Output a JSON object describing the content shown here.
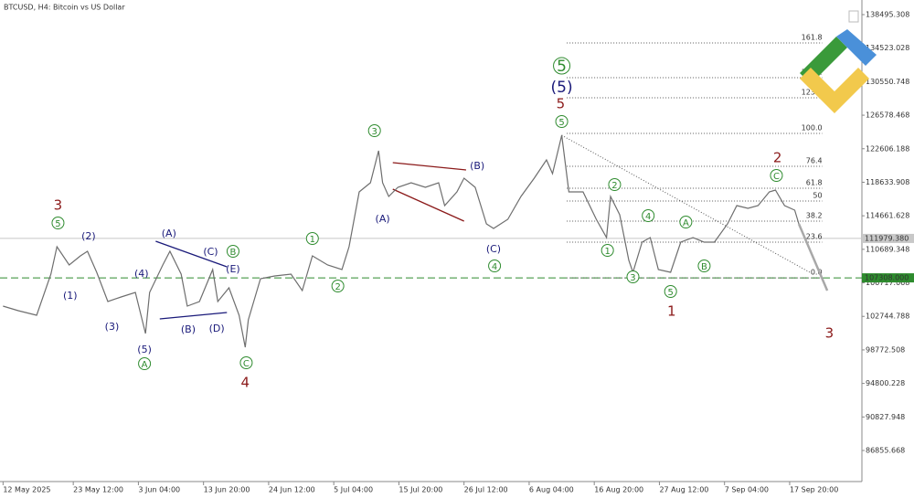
{
  "chart_data": {
    "type": "line",
    "title": "BTCUSD, H4:  Bitcoin vs US Dollar",
    "x": [
      0,
      15,
      33,
      47,
      53,
      65,
      76,
      83,
      92,
      103,
      116,
      130,
      140,
      144,
      157,
      164,
      175,
      181,
      193,
      206,
      211,
      222,
      232,
      238,
      241,
      253,
      267,
      283,
      294,
      304,
      319,
      333,
      340,
      350,
      361,
      369,
      373,
      379,
      388,
      401,
      415,
      428,
      434,
      446,
      453,
      464,
      475,
      482,
      496,
      509,
      522,
      534,
      540,
      549,
      556,
      570,
      583,
      593,
      597,
      606,
      615,
      619,
      628,
      636,
      644,
      656,
      666,
      678,
      689,
      699,
      712,
      721,
      732,
      742,
      753,
      759,
      768,
      778,
      782
    ],
    "values": [
      103960,
      103420,
      102880,
      107750,
      111000,
      108830,
      109910,
      110455,
      107966,
      104501,
      105042,
      105584,
      100712,
      105584,
      108832,
      110455,
      107749,
      103960,
      104501,
      108290,
      104501,
      106125,
      102877,
      99088,
      102336,
      107208,
      107532,
      107749,
      105800,
      109914,
      108832,
      108290,
      110997,
      117492,
      118575,
      122364,
      118575,
      116951,
      118034,
      118575,
      118034,
      118575,
      115868,
      117492,
      119116,
      118034,
      113703,
      113162,
      114245,
      116951,
      119116,
      121281,
      119658,
      124205,
      117492,
      117492,
      114245,
      112079,
      116951,
      114786,
      109373,
      107966,
      111538,
      112079,
      108290,
      107966,
      111538,
      112079,
      111538,
      111538,
      113703,
      115868,
      115544,
      115868,
      117492,
      117709,
      115868,
      115327,
      113703
    ],
    "color": "#6e6e6e",
    "xlim": [
      -3,
      844
    ],
    "ylim": [
      83175,
      140227
    ],
    "xticks": [
      {
        "value": 0,
        "label": "12 May 2025"
      },
      {
        "value": 69,
        "label": "23 May 12:00"
      },
      {
        "value": 133,
        "label": "3 Jun 04:00"
      },
      {
        "value": 197,
        "label": "13 Jun 20:00"
      },
      {
        "value": 261,
        "label": "24 Jun 12:00"
      },
      {
        "value": 325,
        "label": "5 Jul 04:00"
      },
      {
        "value": 389,
        "label": "15 Jul 20:00"
      },
      {
        "value": 453,
        "label": "26 Jul 12:00"
      },
      {
        "value": 517,
        "label": "6 Aug 04:00"
      },
      {
        "value": 581,
        "label": "16 Aug 20:00"
      },
      {
        "value": 645,
        "label": "27 Aug 12:00"
      },
      {
        "value": 709,
        "label": "7 Sep 04:00"
      },
      {
        "value": 773,
        "label": "17 Sep 20:00"
      }
    ],
    "yticks": [
      138495.308,
      134523.028,
      130550.748,
      126578.468,
      122606.188,
      118633.908,
      114661.628,
      110689.348,
      106717.068,
      102744.788,
      98772.508,
      94800.228,
      90827.948,
      86855.668
    ],
    "current_price": {
      "value": 111979.38,
      "label": "111979.380"
    },
    "level": {
      "value": 107308,
      "label": "107308.000",
      "color": "#2e8b2e"
    },
    "projection": {
      "x": [
        782,
        810
      ],
      "values": [
        113703,
        105800
      ],
      "color": "#a8a8a8"
    },
    "fibonacci": {
      "x": [
        554,
        805
      ],
      "levels": [
        {
          "label": "161.8",
          "price": 135139
        },
        {
          "label": "138.2",
          "price": 131025
        },
        {
          "label": "123.6",
          "price": 128643
        },
        {
          "label": "100.0",
          "price": 124421
        },
        {
          "label": "76.4",
          "price": 120524
        },
        {
          "label": "61.8",
          "price": 117925
        },
        {
          "label": "50",
          "price": 116410
        },
        {
          "label": "38.2",
          "price": 114028
        },
        {
          "label": "23.6",
          "price": 111538
        },
        {
          "label": "0.0",
          "price": 107308
        }
      ]
    },
    "trendline": {
      "x": [
        549,
        796
      ],
      "values": [
        124205,
        107749
      ]
    },
    "lines": [
      {
        "x": [
          383,
          455
        ],
        "values": [
          120957,
          120091
        ],
        "color": "#8b1a1a"
      },
      {
        "x": [
          383,
          453
        ],
        "values": [
          117817,
          114028
        ],
        "color": "#8b1a1a"
      },
      {
        "x": [
          150,
          220
        ],
        "values": [
          111646,
          108615
        ],
        "color": "#1a1a7a"
      },
      {
        "x": [
          154,
          220
        ],
        "values": [
          102444,
          103202
        ],
        "color": "#1a1a7a"
      }
    ],
    "annotations": [
      {
        "text": "3",
        "x": 54,
        "price": 115977,
        "color": "#8b1a1a",
        "circled": false
      },
      {
        "text": "5",
        "x": 54,
        "price": 113812,
        "color": "#2e8b2e",
        "circled": true
      },
      {
        "text": "(2)",
        "x": 84,
        "price": 112296,
        "color": "#1a1a7a",
        "circled": false
      },
      {
        "text": "(1)",
        "x": 66,
        "price": 105259,
        "color": "#1a1a7a",
        "circled": false
      },
      {
        "text": "(3)",
        "x": 107,
        "price": 101578,
        "color": "#1a1a7a",
        "circled": false
      },
      {
        "text": "(4)",
        "x": 136,
        "price": 107857,
        "color": "#1a1a7a",
        "circled": false
      },
      {
        "text": "(5)",
        "x": 139,
        "price": 98872,
        "color": "#1a1a7a",
        "circled": false
      },
      {
        "text": "A",
        "x": 139,
        "price": 97140,
        "color": "#2e8b2e",
        "circled": true
      },
      {
        "text": "(A)",
        "x": 163,
        "price": 112621,
        "color": "#1a1a7a",
        "circled": false
      },
      {
        "text": "(B)",
        "x": 182,
        "price": 101253,
        "color": "#1a1a7a",
        "circled": false
      },
      {
        "text": "(C)",
        "x": 204,
        "price": 110455,
        "color": "#1a1a7a",
        "circled": false
      },
      {
        "text": "B",
        "x": 226,
        "price": 110455,
        "color": "#2e8b2e",
        "circled": true
      },
      {
        "text": "(E)",
        "x": 226,
        "price": 108399,
        "color": "#1a1a7a",
        "circled": false
      },
      {
        "text": "(D)",
        "x": 210,
        "price": 101362,
        "color": "#1a1a7a",
        "circled": false
      },
      {
        "text": "C",
        "x": 239,
        "price": 97248,
        "color": "#2e8b2e",
        "circled": true
      },
      {
        "text": "4",
        "x": 238,
        "price": 94974,
        "color": "#8b1a1a",
        "circled": false
      },
      {
        "text": "1",
        "x": 304,
        "price": 111971,
        "color": "#2e8b2e",
        "circled": true
      },
      {
        "text": "2",
        "x": 329,
        "price": 106342,
        "color": "#2e8b2e",
        "circled": true
      },
      {
        "text": "3",
        "x": 365,
        "price": 124746,
        "color": "#2e8b2e",
        "circled": true
      },
      {
        "text": "(A)",
        "x": 373,
        "price": 114353,
        "color": "#1a1a7a",
        "circled": false
      },
      {
        "text": "(B)",
        "x": 466,
        "price": 120632,
        "color": "#1a1a7a",
        "circled": false
      },
      {
        "text": "(C)",
        "x": 482,
        "price": 110780,
        "color": "#1a1a7a",
        "circled": false
      },
      {
        "text": "4",
        "x": 483,
        "price": 108723,
        "color": "#2e8b2e",
        "circled": true
      },
      {
        "text": "5",
        "x": 549,
        "price": 132432,
        "color": "#2e8b2e",
        "circled": true,
        "big": true
      },
      {
        "text": "(5)",
        "x": 549,
        "price": 129942,
        "color": "#1a1a7a",
        "circled": false,
        "big": true
      },
      {
        "text": "5",
        "x": 548,
        "price": 127994,
        "color": "#8b1a1a",
        "circled": false
      },
      {
        "text": "5",
        "x": 549,
        "price": 125828,
        "color": "#2e8b2e",
        "circled": true
      },
      {
        "text": "1",
        "x": 594,
        "price": 110564,
        "color": "#2e8b2e",
        "circled": true
      },
      {
        "text": "2",
        "x": 601,
        "price": 118358,
        "color": "#2e8b2e",
        "circled": true
      },
      {
        "text": "3",
        "x": 619,
        "price": 107424,
        "color": "#2e8b2e",
        "circled": true
      },
      {
        "text": "4",
        "x": 634,
        "price": 114678,
        "color": "#2e8b2e",
        "circled": true
      },
      {
        "text": "5",
        "x": 656,
        "price": 105692,
        "color": "#2e8b2e",
        "circled": true
      },
      {
        "text": "1",
        "x": 657,
        "price": 103419,
        "color": "#8b1a1a",
        "circled": false
      },
      {
        "text": "A",
        "x": 671,
        "price": 113920,
        "color": "#2e8b2e",
        "circled": true
      },
      {
        "text": "B",
        "x": 689,
        "price": 108723,
        "color": "#2e8b2e",
        "circled": true
      },
      {
        "text": "C",
        "x": 760,
        "price": 119441,
        "color": "#2e8b2e",
        "circled": true
      },
      {
        "text": "2",
        "x": 761,
        "price": 121606,
        "color": "#8b1a1a",
        "circled": false
      },
      {
        "text": "3",
        "x": 812,
        "price": 100820,
        "color": "#8b1a1a",
        "circled": false
      }
    ]
  }
}
